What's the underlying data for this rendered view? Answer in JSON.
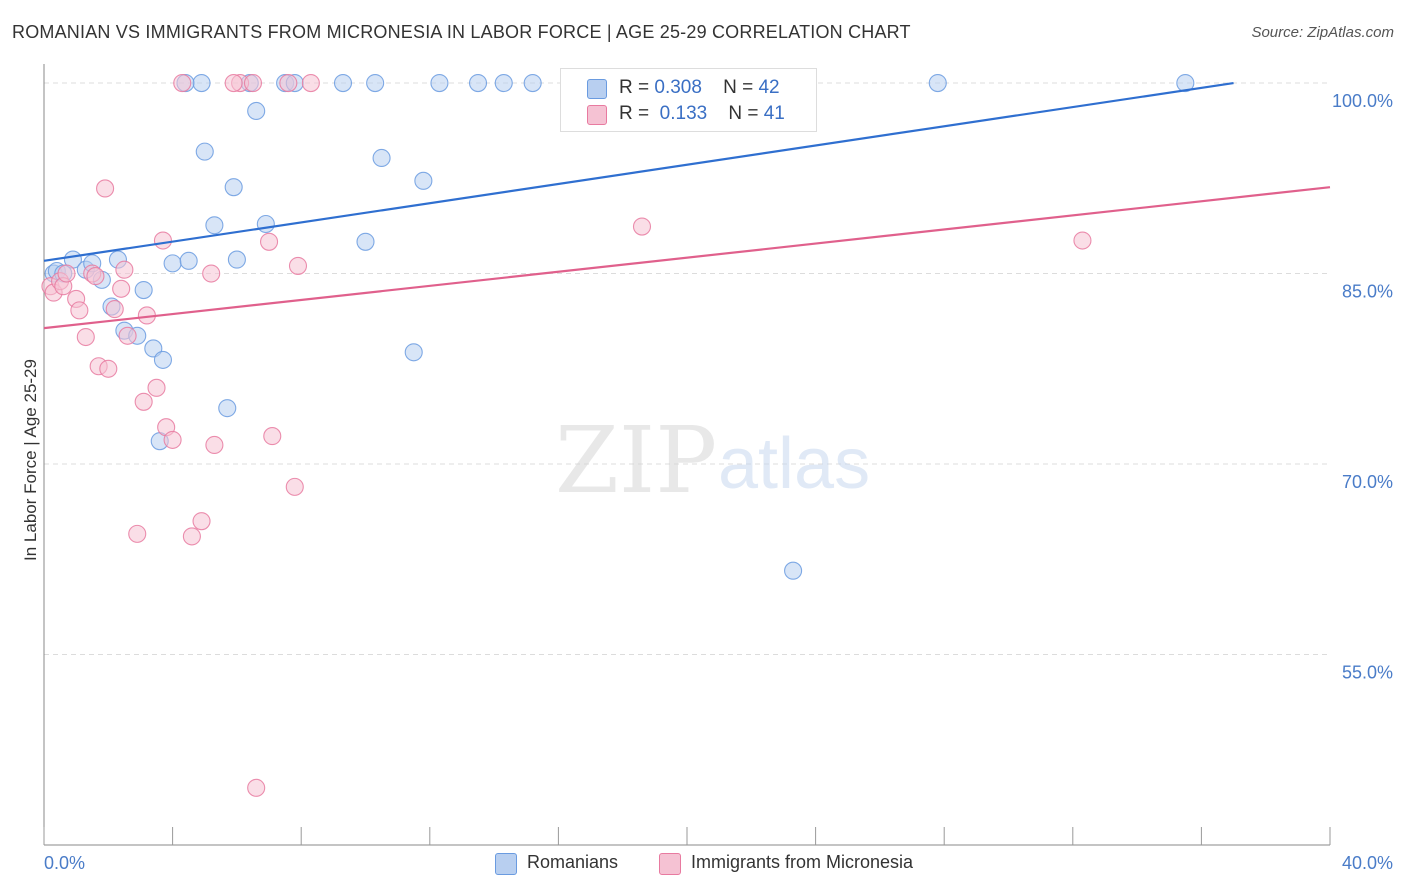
{
  "title": "ROMANIAN VS IMMIGRANTS FROM MICRONESIA IN LABOR FORCE | AGE 25-29 CORRELATION CHART",
  "source": "Source: ZipAtlas.com",
  "watermark": {
    "zip": "ZIP",
    "atlas": "atlas"
  },
  "chart_data": {
    "type": "scatter",
    "title": "ROMANIAN VS IMMIGRANTS FROM MICRONESIA IN LABOR FORCE | AGE 25-29 CORRELATION CHART",
    "xlabel": "",
    "ylabel": "In Labor Force | Age 25-29",
    "xlim": [
      0,
      40
    ],
    "ylim": [
      40,
      101.5
    ],
    "x_tick_labels": [
      "0.0%",
      "40.0%"
    ],
    "y_ticks": [
      55,
      70,
      85,
      100
    ],
    "y_tick_labels": [
      "55.0%",
      "70.0%",
      "85.0%",
      "100.0%"
    ],
    "grid": true,
    "legend_position": "bottom",
    "series": [
      {
        "name": "Romanians",
        "color": "#6a9be0",
        "fill": "#b8cff0",
        "stats": {
          "r_label": "R =",
          "r_value": "0.308",
          "n_label": "N =",
          "n_value": "42"
        },
        "trend": {
          "x": [
            0,
            37
          ],
          "y": [
            86.0,
            100.0
          ]
        },
        "points": [
          [
            0.3,
            85.0
          ],
          [
            0.4,
            85.2
          ],
          [
            0.6,
            85.0
          ],
          [
            0.9,
            86.1
          ],
          [
            1.3,
            85.3
          ],
          [
            1.5,
            85.8
          ],
          [
            1.8,
            84.5
          ],
          [
            2.3,
            86.1
          ],
          [
            2.1,
            82.4
          ],
          [
            3.1,
            83.7
          ],
          [
            2.5,
            80.5
          ],
          [
            2.9,
            80.1
          ],
          [
            3.4,
            79.1
          ],
          [
            3.6,
            71.8
          ],
          [
            4.0,
            85.8
          ],
          [
            4.5,
            86.0
          ],
          [
            4.9,
            100.0
          ],
          [
            5.0,
            94.6
          ],
          [
            5.3,
            88.8
          ],
          [
            5.7,
            74.4
          ],
          [
            5.9,
            91.8
          ],
          [
            6.0,
            86.1
          ],
          [
            6.4,
            100.0
          ],
          [
            6.6,
            97.8
          ],
          [
            6.9,
            88.9
          ],
          [
            7.5,
            100.0
          ],
          [
            7.8,
            100.0
          ],
          [
            9.3,
            100.0
          ],
          [
            10.0,
            87.5
          ],
          [
            10.3,
            100.0
          ],
          [
            10.5,
            94.1
          ],
          [
            11.5,
            78.8
          ],
          [
            11.8,
            92.3
          ],
          [
            12.3,
            100.0
          ],
          [
            13.5,
            100.0
          ],
          [
            14.3,
            100.0
          ],
          [
            15.2,
            100.0
          ],
          [
            3.7,
            78.2
          ],
          [
            23.3,
            61.6
          ],
          [
            27.8,
            100.0
          ],
          [
            35.5,
            100.0
          ],
          [
            4.4,
            100.0
          ]
        ]
      },
      {
        "name": "Immigrants from Micronesia",
        "color": "#e87aa0",
        "fill": "#f5c2d3",
        "stats": {
          "r_label": "R =",
          "r_value": "0.133",
          "n_label": "N =",
          "n_value": "41"
        },
        "trend": {
          "x": [
            0,
            40
          ],
          "y": [
            80.7,
            91.8
          ]
        },
        "points": [
          [
            0.2,
            84.0
          ],
          [
            0.3,
            83.5
          ],
          [
            0.5,
            84.4
          ],
          [
            0.6,
            84.0
          ],
          [
            0.7,
            85.0
          ],
          [
            1.0,
            83.0
          ],
          [
            1.1,
            82.1
          ],
          [
            1.3,
            80.0
          ],
          [
            1.5,
            85.0
          ],
          [
            1.6,
            84.8
          ],
          [
            1.7,
            77.7
          ],
          [
            1.9,
            91.7
          ],
          [
            2.0,
            77.5
          ],
          [
            2.2,
            82.2
          ],
          [
            2.4,
            83.8
          ],
          [
            2.5,
            85.3
          ],
          [
            2.6,
            80.1
          ],
          [
            2.9,
            64.5
          ],
          [
            3.1,
            74.9
          ],
          [
            3.2,
            81.7
          ],
          [
            3.5,
            76.0
          ],
          [
            3.7,
            87.6
          ],
          [
            3.8,
            72.9
          ],
          [
            4.0,
            71.9
          ],
          [
            4.3,
            100.0
          ],
          [
            4.6,
            64.3
          ],
          [
            4.9,
            65.5
          ],
          [
            5.2,
            85.0
          ],
          [
            5.3,
            71.5
          ],
          [
            6.1,
            100.0
          ],
          [
            6.5,
            100.0
          ],
          [
            6.6,
            44.5
          ],
          [
            7.0,
            87.5
          ],
          [
            7.1,
            72.2
          ],
          [
            7.6,
            100.0
          ],
          [
            7.8,
            68.2
          ],
          [
            7.9,
            85.6
          ],
          [
            8.3,
            100.0
          ],
          [
            18.6,
            88.7
          ],
          [
            32.3,
            87.6
          ],
          [
            5.9,
            100.0
          ]
        ]
      }
    ]
  }
}
